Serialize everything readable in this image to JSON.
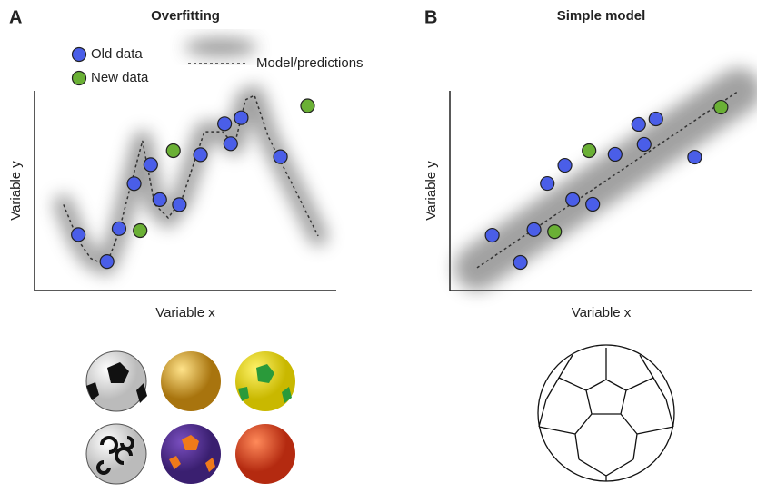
{
  "chart_data": [
    {
      "type": "scatter",
      "panel": "A",
      "title": "Overfitting",
      "x_label": "Variable x",
      "y_label": "Variable y",
      "xlim": [
        0,
        10
      ],
      "ylim": [
        0,
        10
      ],
      "legend": true,
      "series": [
        {
          "name": "Old data",
          "color": "#4a5ee8",
          "kind": "points",
          "x": [
            1.45,
            2.4,
            2.8,
            3.3,
            3.85,
            4.15,
            4.8,
            5.5,
            6.3,
            6.5,
            6.85,
            8.15
          ],
          "values": [
            2.8,
            1.45,
            3.1,
            5.35,
            6.3,
            4.55,
            4.3,
            6.8,
            8.35,
            7.35,
            8.65,
            6.7
          ]
        },
        {
          "name": "New data",
          "color": "#6ab035",
          "kind": "points",
          "x": [
            3.5,
            4.6,
            9.05
          ],
          "values": [
            3.0,
            7.0,
            9.25
          ]
        },
        {
          "name": "Model/predictions",
          "color": "#333333",
          "kind": "line",
          "x": [
            0.96,
            1.45,
            1.87,
            2.38,
            2.77,
            3.22,
            3.58,
            3.98,
            4.43,
            4.88,
            5.33,
            5.63,
            6.23,
            6.63,
            6.99,
            7.29,
            7.74,
            8.19,
            8.8,
            9.4
          ],
          "values": [
            4.3,
            2.5,
            1.6,
            1.27,
            2.82,
            5.45,
            7.5,
            4.32,
            3.64,
            4.55,
            6.6,
            7.95,
            7.95,
            7.27,
            9.55,
            9.77,
            7.73,
            6.36,
            4.55,
            2.73
          ]
        }
      ]
    },
    {
      "type": "scatter",
      "panel": "B",
      "title": "Simple model",
      "x_label": "Variable x",
      "y_label": "Variable y",
      "xlim": [
        0,
        10
      ],
      "ylim": [
        0,
        10
      ],
      "legend": false,
      "series": [
        {
          "color": "#4a5ee8",
          "kind": "points",
          "x": [
            1.4,
            2.33,
            2.78,
            3.22,
            3.8,
            4.06,
            4.72,
            5.46,
            6.24,
            6.42,
            6.81,
            8.09
          ],
          "values": [
            2.77,
            1.41,
            3.05,
            5.36,
            6.27,
            4.55,
            4.32,
            6.82,
            8.32,
            7.32,
            8.59,
            6.68
          ]
        },
        {
          "color": "#6ab035",
          "kind": "points",
          "x": [
            3.46,
            4.6,
            8.96
          ],
          "values": [
            2.95,
            7.0,
            9.18
          ]
        },
        {
          "color": "#333333",
          "kind": "line",
          "x": [
            0.9,
            9.55
          ],
          "values": [
            1.14,
            10.0
          ]
        }
      ]
    }
  ]
}
